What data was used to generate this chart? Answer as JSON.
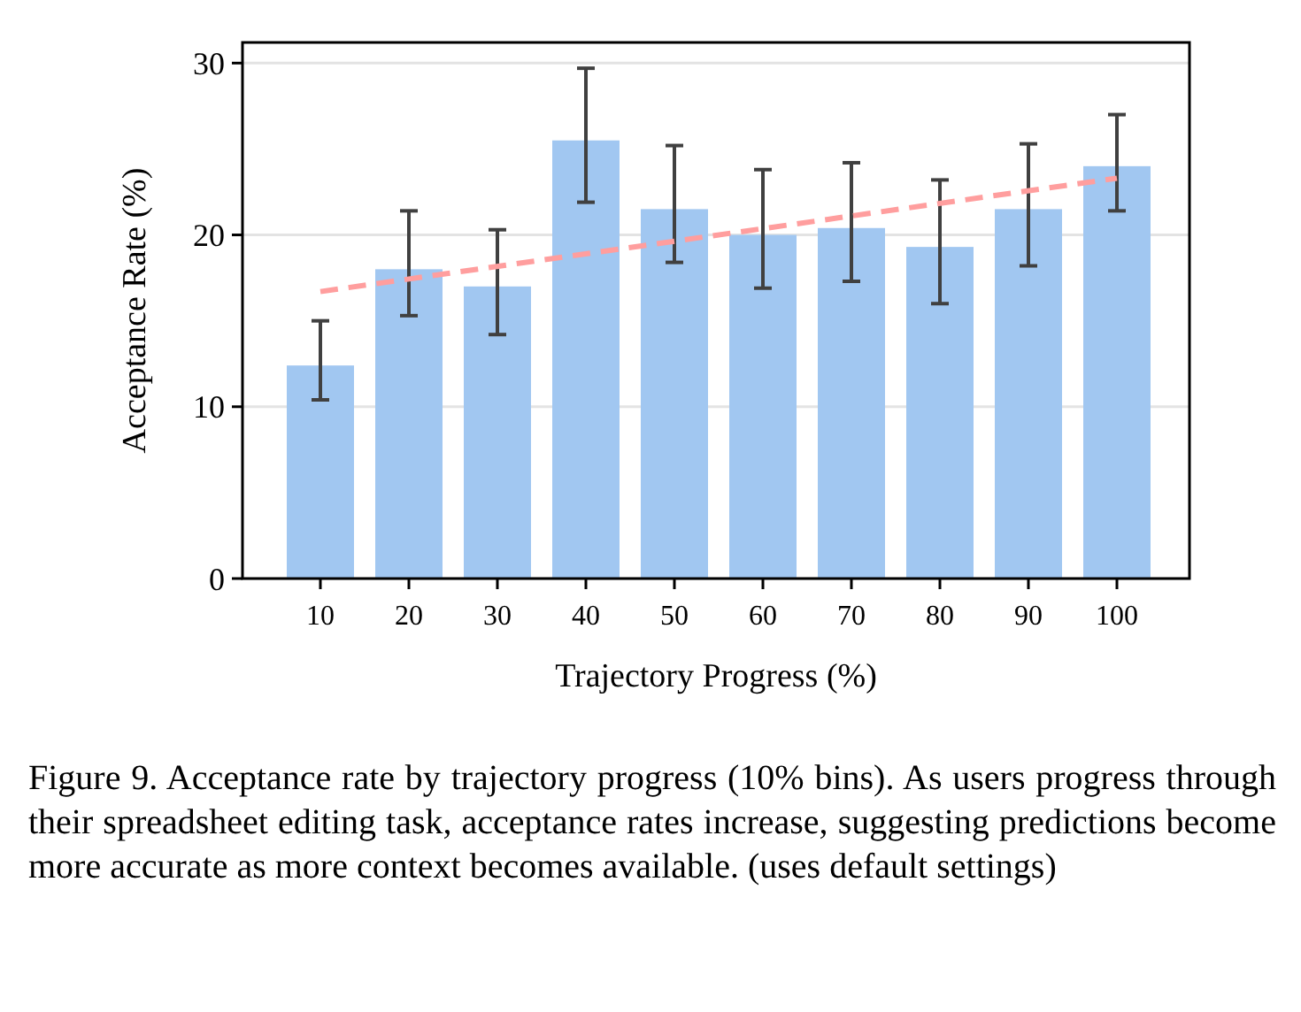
{
  "chart_data": {
    "type": "bar",
    "xlabel": "Trajectory Progress (%)",
    "ylabel": "Acceptance Rate (%)",
    "x": [
      10,
      20,
      30,
      40,
      50,
      60,
      70,
      80,
      90,
      100
    ],
    "xlim": [
      1.2,
      108.2
    ],
    "xticks": [
      10,
      20,
      30,
      40,
      50,
      60,
      70,
      80,
      90,
      100
    ],
    "ylim": [
      0,
      31.2
    ],
    "yticks": [
      0,
      10,
      20,
      30
    ],
    "grid": "y",
    "series": [
      {
        "color": "#a1c7f1",
        "values": [
          12.4,
          18.0,
          17.0,
          25.5,
          21.5,
          20.0,
          20.4,
          19.3,
          21.5,
          24.0
        ],
        "errors": [
          [
            10.4,
            15.0
          ],
          [
            15.3,
            21.4
          ],
          [
            14.2,
            20.3
          ],
          [
            21.9,
            29.7
          ],
          [
            18.4,
            25.2
          ],
          [
            16.9,
            23.8
          ],
          [
            17.3,
            24.2
          ],
          [
            16.0,
            23.2
          ],
          [
            18.2,
            25.3
          ],
          [
            21.4,
            27.0
          ]
        ]
      },
      {
        "type": "line",
        "color": "#ff9e9e",
        "line_style": "dashed",
        "x": [
          10,
          100
        ],
        "values": [
          16.7,
          23.3
        ]
      }
    ],
    "annotations": [
      "Figure 9. Acceptance rate by trajectory progress (10% bins). As users progress through their spreadsheet editing task, acceptance rates increase, suggesting predictions become more accurate as more context becomes available. (uses default settings)"
    ]
  }
}
